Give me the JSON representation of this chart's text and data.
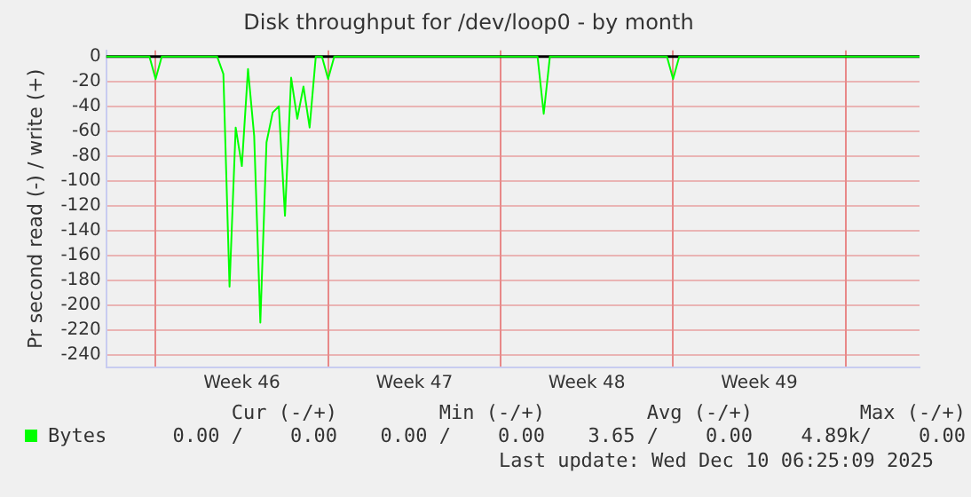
{
  "chart_data": {
    "type": "line",
    "title": "Disk throughput for /dev/loop0 - by month",
    "ylabel": "Pr second read (-) / write (+)",
    "categories": [
      null,
      null,
      null,
      null,
      null,
      null,
      null,
      null,
      null,
      null,
      null,
      null,
      null,
      null,
      null,
      null,
      null,
      null,
      null,
      null,
      null,
      null,
      "Week 46",
      null,
      null,
      null,
      null,
      null,
      null,
      null,
      null,
      null,
      null,
      null,
      null,
      null,
      null,
      null,
      null,
      null,
      null,
      null,
      null,
      null,
      null,
      null,
      null,
      null,
      null,
      null,
      "Week 47",
      null,
      null,
      null,
      null,
      null,
      null,
      null,
      null,
      null,
      null,
      null,
      null,
      null,
      null,
      null,
      null,
      null,
      null,
      null,
      null,
      null,
      null,
      null,
      null,
      null,
      null,
      null,
      "Week 48",
      null,
      null,
      null,
      null,
      null,
      null,
      null,
      null,
      null,
      null,
      null,
      null,
      null,
      null,
      null,
      null,
      null,
      null,
      null,
      null,
      null,
      null,
      null,
      null,
      null,
      null,
      null,
      "Week 49",
      null,
      null,
      null,
      null,
      null,
      null,
      null,
      null,
      null,
      null,
      null,
      null,
      null,
      null,
      null,
      null,
      null,
      null,
      null,
      null,
      null,
      null,
      null,
      null,
      null,
      null
    ],
    "series": [
      {
        "name": "Bytes",
        "color": "#00ff00",
        "values": [
          0,
          0,
          0,
          0,
          0,
          0,
          0,
          0,
          -18,
          0,
          0,
          0,
          0,
          0,
          0,
          0,
          0,
          0,
          0,
          -14,
          -185,
          -57,
          -88,
          -10,
          -64,
          -214,
          -69,
          -45,
          -40,
          -128,
          -17,
          -50,
          -24,
          -57,
          0,
          0,
          -18,
          0,
          0,
          0,
          0,
          0,
          0,
          0,
          0,
          0,
          0,
          0,
          0,
          0,
          0,
          0,
          0,
          0,
          0,
          0,
          0,
          0,
          0,
          0,
          0,
          0,
          0,
          0,
          0,
          0,
          0,
          0,
          0,
          0,
          0,
          -46,
          0,
          0,
          0,
          0,
          0,
          0,
          0,
          0,
          0,
          0,
          0,
          0,
          0,
          0,
          0,
          0,
          0,
          0,
          0,
          0,
          -18,
          0,
          0,
          0,
          0,
          0,
          0,
          0,
          0,
          0,
          0,
          0,
          0,
          0,
          0,
          0,
          0,
          0,
          0,
          0,
          0,
          0,
          0,
          0,
          0,
          0,
          0,
          0,
          0,
          0,
          0,
          0,
          0,
          0,
          0,
          0,
          0,
          0,
          0,
          0,
          0
        ]
      }
    ],
    "ylim": [
      -250,
      5
    ],
    "yticks": [
      -240,
      -220,
      -200,
      -180,
      -160,
      -140,
      -120,
      -100,
      -80,
      -60,
      -40,
      -20,
      0
    ],
    "grid": true,
    "ref_lines": [
      {
        "axis": "y",
        "value": 0,
        "color": "#000000"
      }
    ],
    "legend": "bottom",
    "marker": "none",
    "annotations": [
      "Cur (-/+)",
      "Min (-/+)",
      "Avg (-/+)",
      "Max (-/+)",
      "0.00 /    0.00",
      "0.00 /    0.00",
      "3.65 /    0.00",
      "4.89k/    0.00",
      "Last update: Wed Dec 10 06:25:09 2025"
    ]
  }
}
